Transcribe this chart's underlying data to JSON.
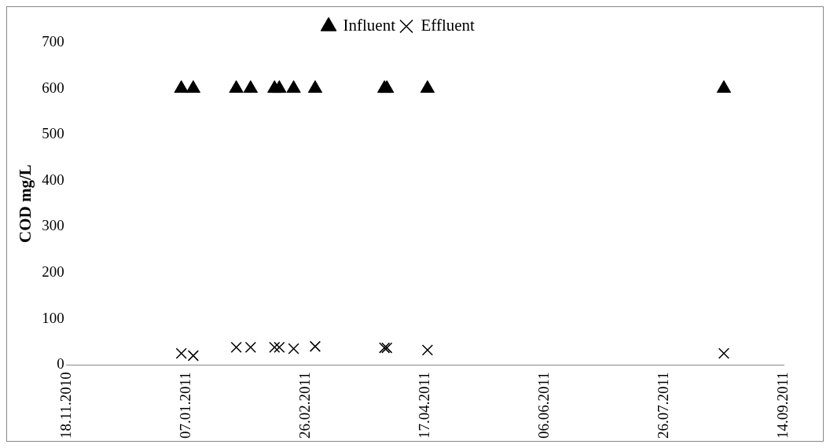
{
  "chart_data": {
    "type": "scatter",
    "ylabel": "COD mg/L",
    "series": [
      {
        "name": "Influent",
        "color": "#000000",
        "marker": "triangle",
        "x": [
          "2011-01-05",
          "2011-01-10",
          "2011-01-28",
          "2011-02-03",
          "2011-02-13",
          "2011-02-15",
          "2011-02-21",
          "2011-03-02",
          "2011-03-31",
          "2011-04-01",
          "2011-04-18",
          "2011-08-20"
        ],
        "values": [
          600,
          600,
          600,
          600,
          600,
          600,
          600,
          600,
          600,
          600,
          600,
          600
        ]
      },
      {
        "name": "Effluent",
        "color": "#000000",
        "marker": "cross",
        "x": [
          "2011-01-05",
          "2011-01-10",
          "2011-01-28",
          "2011-02-03",
          "2011-02-13",
          "2011-02-15",
          "2011-02-21",
          "2011-03-02",
          "2011-03-31",
          "2011-04-01",
          "2011-04-18",
          "2011-08-20"
        ],
        "values": [
          25,
          20,
          38,
          38,
          38,
          38,
          35,
          40,
          37,
          37,
          32,
          25
        ]
      }
    ],
    "xlim": [
      "2010-11-18",
      "2011-09-14"
    ],
    "xticks": [
      {
        "value": "2010-11-18",
        "label": "18.11.2010"
      },
      {
        "value": "2011-01-07",
        "label": "07.01.2011"
      },
      {
        "value": "2011-02-26",
        "label": "26.02.2011"
      },
      {
        "value": "2011-04-17",
        "label": "17.04.2011"
      },
      {
        "value": "2011-06-06",
        "label": "06.06.2011"
      },
      {
        "value": "2011-07-26",
        "label": "26.07.2011"
      },
      {
        "value": "2011-09-14",
        "label": "14.09.2011"
      }
    ],
    "ylim": [
      0,
      700
    ],
    "yticks": [
      0,
      100,
      200,
      300,
      400,
      500,
      600,
      700
    ],
    "grid": false,
    "legend": "top"
  }
}
